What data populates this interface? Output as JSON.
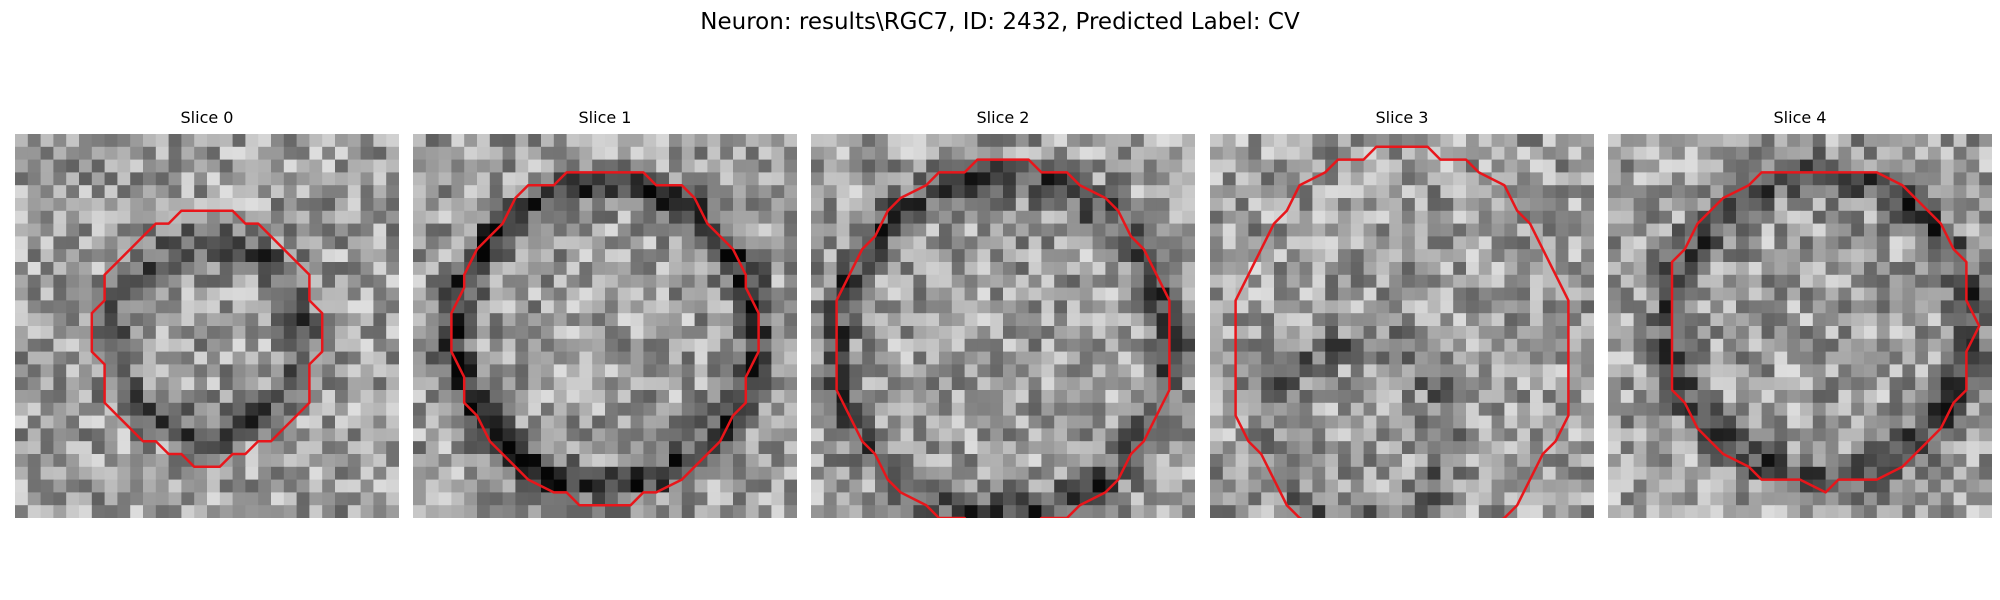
{
  "figure": {
    "title": "Neuron: results\\RGC7, ID: 2432, Predicted Label: CV"
  },
  "panels": [
    {
      "title": "Slice 0"
    },
    {
      "title": "Slice 1"
    },
    {
      "title": "Slice 2"
    },
    {
      "title": "Slice 3"
    },
    {
      "title": "Slice 4"
    }
  ],
  "colors": {
    "contour": "#e8161b",
    "background": "#ffffff"
  }
}
